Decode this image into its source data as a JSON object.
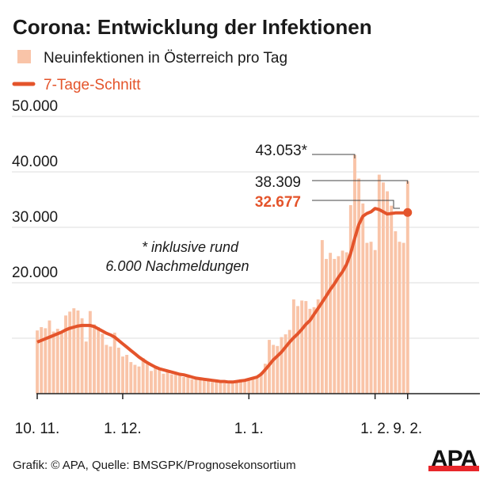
{
  "colors": {
    "bar": "#f9c4a8",
    "line": "#e4542b",
    "grid": "#dcdcdc",
    "text": "#1a1a1a",
    "logo_red": "#e8262a"
  },
  "footer": {
    "source": "Grafik: © APA, Quelle: BMSGPK/Prognosekonsortium",
    "logo": "APA"
  },
  "chart_data": {
    "type": "bar",
    "title": "Corona: Entwicklung der Infektionen",
    "legend": [
      {
        "name": "Neuinfektionen in Österreich pro Tag",
        "kind": "bar"
      },
      {
        "name": "7-Tage-Schnitt",
        "kind": "line"
      }
    ],
    "legend_placement": "top-left",
    "ylim": [
      0,
      50000
    ],
    "yticks": [
      10000,
      20000,
      30000,
      40000,
      50000
    ],
    "ytick_labels": [
      "",
      "20.000",
      "30.000",
      "40.000",
      "50.000"
    ],
    "xticks": [
      {
        "label": "10. 11.",
        "day": 0
      },
      {
        "label": "1. 12.",
        "day": 21
      },
      {
        "label": "1. 1.",
        "day": 52
      },
      {
        "label": "1. 2.",
        "day": 83
      },
      {
        "label": "9. 2.",
        "day": 91
      }
    ],
    "x_days": 100,
    "grid": true,
    "series": [
      {
        "name": "Neuinfektionen in Österreich pro Tag",
        "type": "bar",
        "start": "10.11.",
        "values": [
          11400,
          12000,
          11800,
          13200,
          11200,
          11700,
          10900,
          14100,
          14800,
          15400,
          15000,
          13600,
          9400,
          14900,
          12500,
          12000,
          10800,
          8800,
          8500,
          11000,
          8300,
          6700,
          7000,
          5700,
          5200,
          4900,
          6400,
          5300,
          4100,
          5000,
          4500,
          3600,
          4000,
          3500,
          3800,
          3300,
          3000,
          3200,
          2600,
          2800,
          2500,
          2400,
          2300,
          2100,
          2500,
          2000,
          1900,
          1800,
          1900,
          2200,
          2600,
          2600,
          2800,
          3000,
          2900,
          3800,
          5400,
          9700,
          8800,
          8600,
          10200,
          10700,
          11500,
          17000,
          15800,
          16800,
          16700,
          15300,
          15600,
          17000,
          27700,
          24300,
          25400,
          24300,
          24800,
          25800,
          25500,
          34000,
          43053,
          38800,
          34300,
          27200,
          27400,
          25900,
          39500,
          38100,
          36500,
          33900,
          29300,
          27400,
          27200,
          38309
        ]
      },
      {
        "name": "7-Tage-Schnitt",
        "type": "line",
        "start": "10.11.",
        "values": [
          9300,
          9600,
          9900,
          10200,
          10500,
          10800,
          11100,
          11500,
          11800,
          12000,
          12200,
          12300,
          12300,
          12300,
          12100,
          11700,
          11300,
          10900,
          10600,
          10200,
          9600,
          9000,
          8400,
          7800,
          7200,
          6600,
          6100,
          5600,
          5200,
          4800,
          4500,
          4300,
          4100,
          3900,
          3700,
          3500,
          3400,
          3200,
          3000,
          2800,
          2700,
          2600,
          2500,
          2400,
          2300,
          2200,
          2200,
          2100,
          2100,
          2200,
          2300,
          2400,
          2600,
          2800,
          3000,
          3500,
          4300,
          5200,
          6100,
          6800,
          7500,
          8400,
          9300,
          10100,
          10800,
          11600,
          12500,
          13200,
          14300,
          15400,
          16500,
          17600,
          18800,
          19800,
          21000,
          22000,
          23300,
          25300,
          28000,
          30500,
          32000,
          32500,
          32800,
          33400,
          33200,
          32800,
          32400,
          32500,
          32600,
          32600,
          32600,
          32677
        ]
      }
    ],
    "annotations": [
      {
        "text": "43.053*",
        "value": 43053,
        "day": 78,
        "style": "normal"
      },
      {
        "text": "38.309",
        "value": 38309,
        "day": 91,
        "style": "normal"
      },
      {
        "text": "32.677",
        "value": 32677,
        "day": 91,
        "style": "bold-accent"
      },
      {
        "text": "* inklusive rund",
        "style": "italic"
      },
      {
        "text": "6.000 Nachmeldungen",
        "style": "italic"
      }
    ]
  }
}
